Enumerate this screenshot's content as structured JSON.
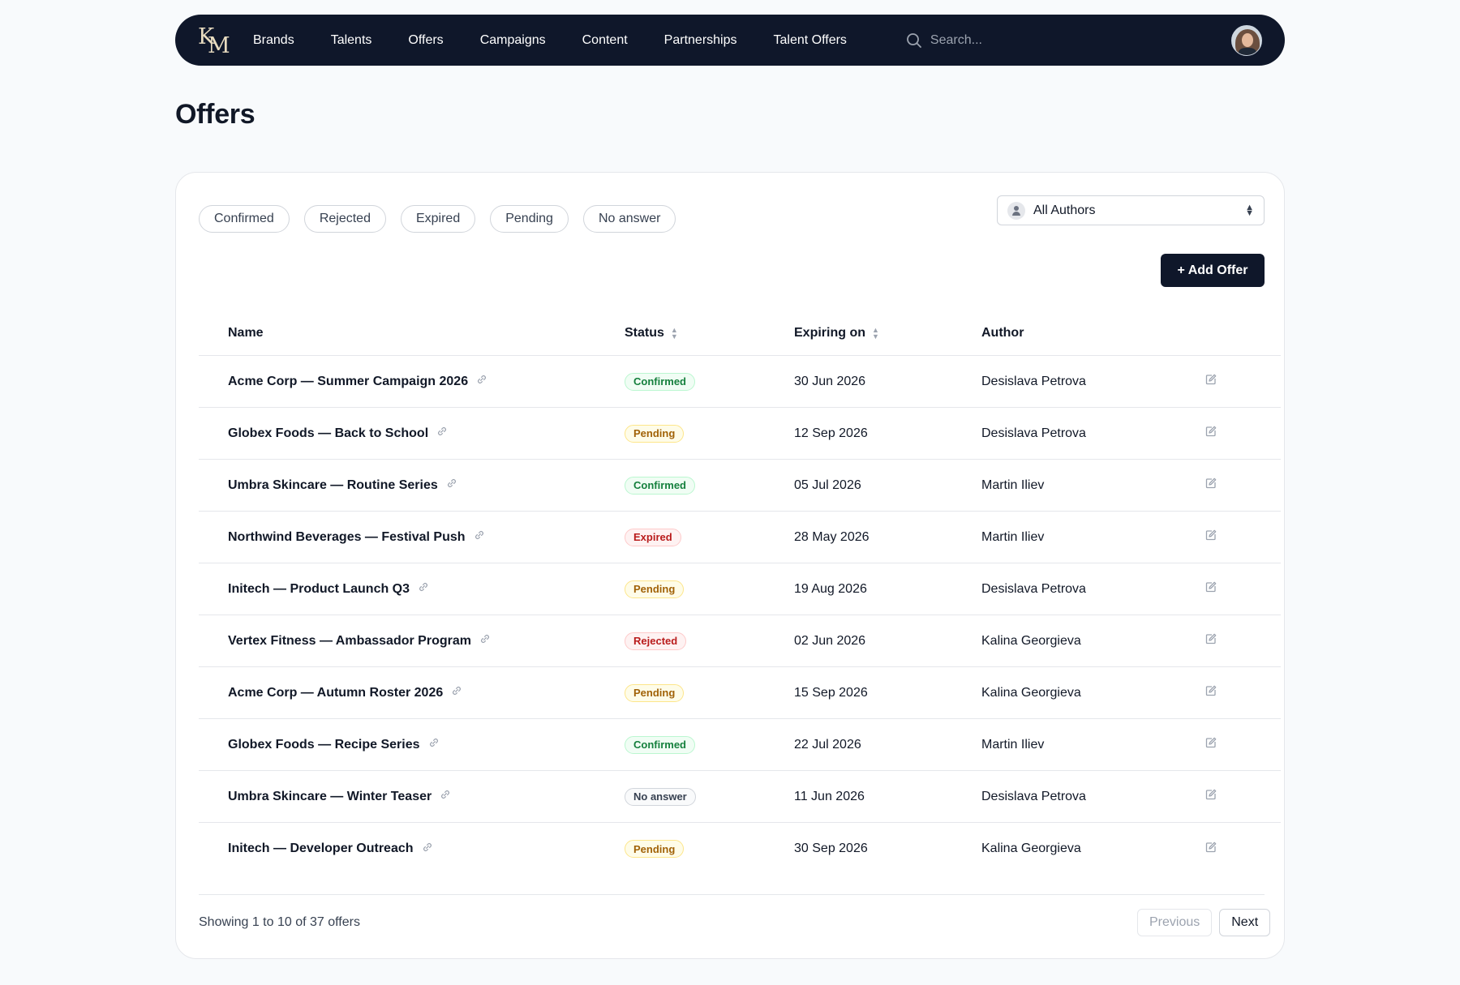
{
  "nav": {
    "logo_k": "K",
    "logo_m": "M",
    "links": [
      "Brands",
      "Talents",
      "Offers",
      "Campaigns",
      "Content",
      "Partnerships",
      "Talent Offers"
    ],
    "search_placeholder": "Search..."
  },
  "page": {
    "title": "Offers"
  },
  "filters": [
    "Confirmed",
    "Rejected",
    "Expired",
    "Pending",
    "No answer"
  ],
  "author_select": {
    "value": "All Authors"
  },
  "add_button": "+ Add Offer",
  "table": {
    "headers": {
      "name": "Name",
      "status": "Status",
      "expiring": "Expiring on",
      "author": "Author"
    },
    "rows": [
      {
        "name": "Acme Corp — Summer Campaign 2026",
        "status": "Confirmed",
        "status_key": "confirmed",
        "expiring": "30 Jun 2026",
        "author": "Desislava Petrova"
      },
      {
        "name": "Globex Foods — Back to School",
        "status": "Pending",
        "status_key": "pending",
        "expiring": "12 Sep 2026",
        "author": "Desislava Petrova"
      },
      {
        "name": "Umbra Skincare — Routine Series",
        "status": "Confirmed",
        "status_key": "confirmed",
        "expiring": "05 Jul 2026",
        "author": "Martin Iliev"
      },
      {
        "name": "Northwind Beverages — Festival Push",
        "status": "Expired",
        "status_key": "expired",
        "expiring": "28 May 2026",
        "author": "Martin Iliev"
      },
      {
        "name": "Initech — Product Launch Q3",
        "status": "Pending",
        "status_key": "pending",
        "expiring": "19 Aug 2026",
        "author": "Desislava Petrova"
      },
      {
        "name": "Vertex Fitness — Ambassador Program",
        "status": "Rejected",
        "status_key": "rejected",
        "expiring": "02 Jun 2026",
        "author": "Kalina Georgieva"
      },
      {
        "name": "Acme Corp — Autumn Roster 2026",
        "status": "Pending",
        "status_key": "pending",
        "expiring": "15 Sep 2026",
        "author": "Kalina Georgieva"
      },
      {
        "name": "Globex Foods — Recipe Series",
        "status": "Confirmed",
        "status_key": "confirmed",
        "expiring": "22 Jul 2026",
        "author": "Martin Iliev"
      },
      {
        "name": "Umbra Skincare — Winter Teaser",
        "status": "No answer",
        "status_key": "noanswer",
        "expiring": "11 Jun 2026",
        "author": "Desislava Petrova"
      },
      {
        "name": "Initech — Developer Outreach",
        "status": "Pending",
        "status_key": "pending",
        "expiring": "30 Sep 2026",
        "author": "Kalina Georgieva"
      }
    ]
  },
  "pagination": {
    "summary": "Showing 1 to 10 of 37 offers",
    "previous": "Previous",
    "next": "Next"
  },
  "icons": {
    "search": "search-icon",
    "link": "link-icon",
    "edit": "edit-icon",
    "sort": "sort-icon",
    "user": "user-icon"
  },
  "colors": {
    "nav_bg": "#0f172a",
    "confirmed": "#15803d",
    "pending": "#a16207",
    "expired": "#b91c1c",
    "rejected": "#b91c1c"
  }
}
